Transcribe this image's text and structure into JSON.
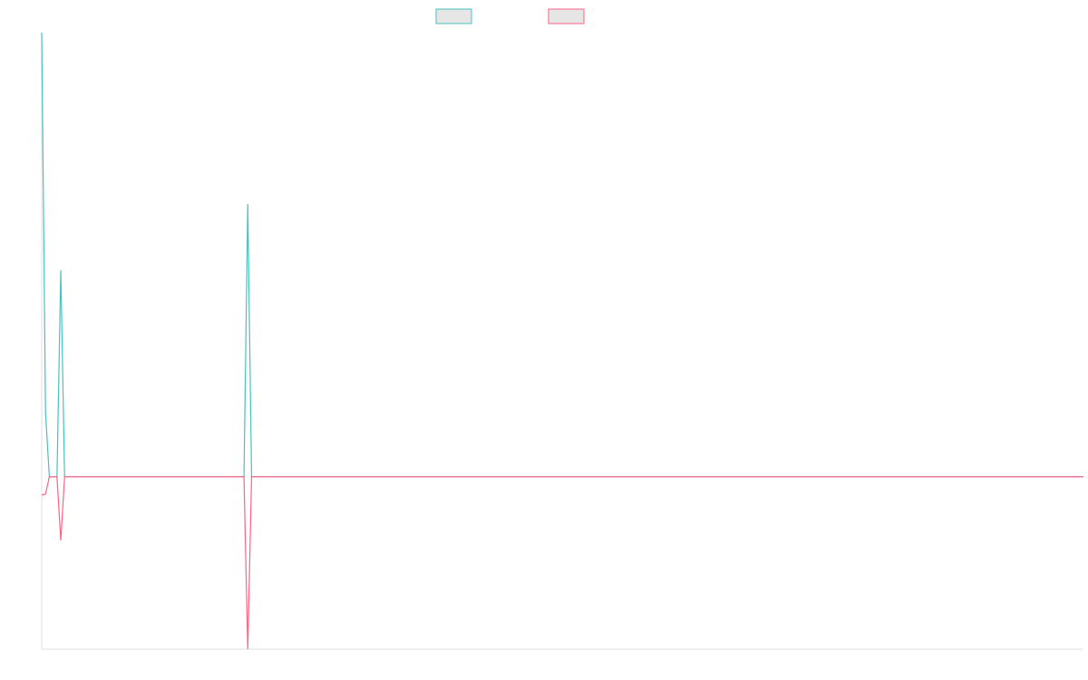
{
  "chart_data": {
    "type": "line",
    "x": [
      0,
      1,
      2,
      4,
      5,
      6,
      53,
      54,
      55,
      273
    ],
    "series": [
      {
        "color": "#4bc0c0",
        "values": [
          100,
          14.5,
          0,
          0,
          46.5,
          0,
          0,
          61.4,
          0,
          0
        ]
      },
      {
        "color": "#ff6384",
        "values": [
          -4.1,
          -3.9,
          0,
          0,
          -14.3,
          0,
          0,
          -38.8,
          0,
          0
        ]
      }
    ],
    "xlim": [
      0,
      273
    ],
    "ylim": [
      -38.8,
      100
    ]
  }
}
